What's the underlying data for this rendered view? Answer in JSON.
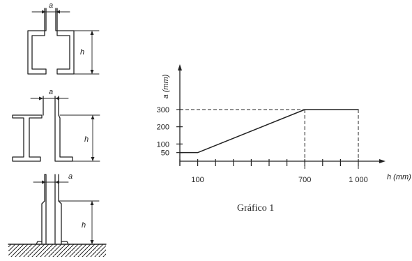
{
  "figures": {
    "dim_a": "a",
    "dim_h": "h"
  },
  "chart_data": {
    "type": "line",
    "x": [
      0,
      100,
      700,
      1000
    ],
    "y": [
      50,
      50,
      300,
      300
    ],
    "xticks": [
      100,
      700,
      1000
    ],
    "xtick_labels": [
      "100",
      "700",
      "1 000"
    ],
    "yticks": [
      50,
      100,
      200,
      300
    ],
    "ytick_labels": [
      "50",
      "100",
      "200",
      "300"
    ],
    "xlabel": "h (mm)",
    "ylabel": "a (mm)",
    "xlim": [
      0,
      1000
    ],
    "ylim": [
      0,
      300
    ],
    "caption": "Gráfico 1",
    "grid": false
  }
}
